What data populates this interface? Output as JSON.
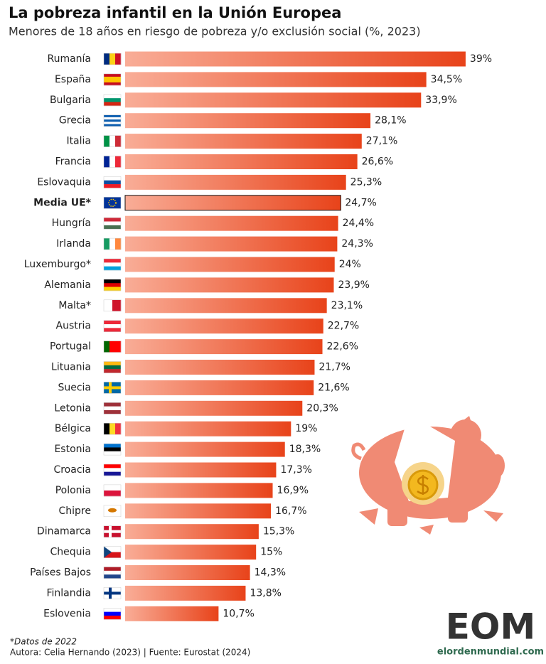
{
  "chart_data": {
    "type": "bar",
    "orientation": "horizontal",
    "title": "La pobreza infantil en la Unión Europea",
    "subtitle": "Menores de 18 años en riesgo de pobreza y/o exclusión social (%, 2023)",
    "categories": [
      "Rumanía",
      "España",
      "Bulgaria",
      "Grecia",
      "Italia",
      "Francia",
      "Eslovaquia",
      "Media UE*",
      "Hungría",
      "Irlanda",
      "Luxemburgo*",
      "Alemania",
      "Malta*",
      "Austria",
      "Portugal",
      "Lituania",
      "Suecia",
      "Letonia",
      "Bélgica",
      "Estonia",
      "Croacia",
      "Polonia",
      "Chipre",
      "Dinamarca",
      "Chequia",
      "Países Bajos",
      "Finlandia",
      "Eslovenia"
    ],
    "values": [
      39,
      34.5,
      33.9,
      28.1,
      27.1,
      26.6,
      25.3,
      24.7,
      24.4,
      24.3,
      24,
      23.9,
      23.1,
      22.7,
      22.6,
      21.7,
      21.6,
      20.3,
      19,
      18.3,
      17.3,
      16.9,
      16.7,
      15.3,
      15,
      14.3,
      13.8,
      10.7
    ],
    "value_labels": [
      "39%",
      "34,5%",
      "33,9%",
      "28,1%",
      "27,1%",
      "26,6%",
      "25,3%",
      "24,7%",
      "24,4%",
      "24,3%",
      "24%",
      "23,9%",
      "23,1%",
      "22,7%",
      "22,6%",
      "21,7%",
      "21,6%",
      "20,3%",
      "19%",
      "18,3%",
      "17,3%",
      "16,9%",
      "16,7%",
      "15,3%",
      "15%",
      "14,3%",
      "13,8%",
      "10,7%"
    ],
    "color": "#e8431a",
    "footnote": "*Datos de 2022",
    "source": "Autora: Celia Hernando (2023) | Fuente: Eurostat (2024)",
    "logo": "EOM",
    "logo_url": "elordenmundial.com"
  }
}
